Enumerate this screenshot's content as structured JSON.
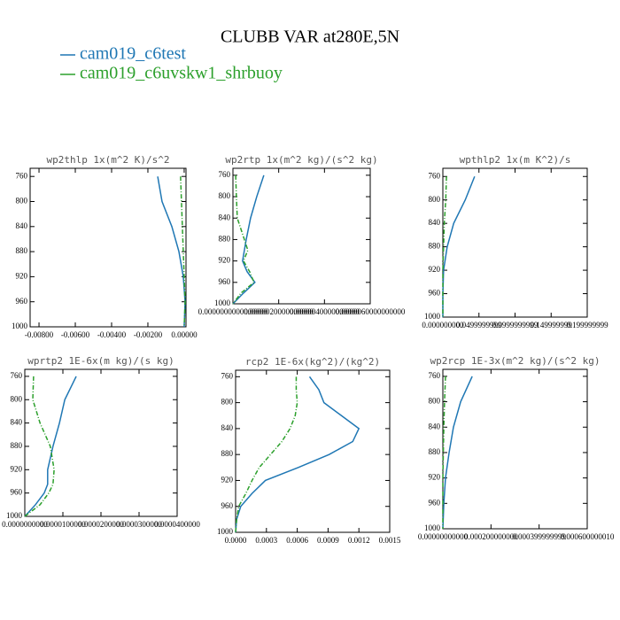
{
  "title": "CLUBB VAR at280E,5N",
  "legend": [
    {
      "name": "cam019_c6test",
      "color": "#1f77b4"
    },
    {
      "name": "cam019_c6uvskw1_shrbuoy",
      "color": "#2ca02c"
    }
  ],
  "chart_data": [
    {
      "type": "line",
      "title": "wp2thlp  1x(m^2 K)/s^2",
      "y": [
        760,
        800,
        840,
        880,
        920,
        960,
        1000
      ],
      "ylim": [
        1000,
        747
      ],
      "yticks": [
        760,
        800,
        840,
        880,
        920,
        960,
        1000
      ],
      "xlim": [
        -0.00849,
        0.0001
      ],
      "xticks": [
        {
          "value": -0.008,
          "label": "-0.00800"
        },
        {
          "value": -0.006,
          "label": "-0.00600"
        },
        {
          "value": -0.004,
          "label": "-0.00400"
        },
        {
          "value": -0.002,
          "label": "-0.00200"
        },
        {
          "value": 0,
          "label": "0.00000"
        }
      ],
      "series": [
        {
          "color": "#1f77b4",
          "linestyle": "solid",
          "values": [
            -0.00146,
            -0.00122,
            -0.00068,
            -0.00029,
            -5e-05,
            5e-05,
            0
          ]
        },
        {
          "color": "#2ca02c",
          "linestyle": "dashdot",
          "values": [
            -0.0002,
            -0.00015,
            -0.0001,
            -5e-05,
            0,
            5e-05,
            0
          ]
        }
      ]
    },
    {
      "type": "line",
      "title": "wp2rtp  1x(m^2 kg)/(s^2 kg)",
      "y": [
        760,
        800,
        840,
        880,
        900,
        920,
        940,
        960,
        980,
        1000
      ],
      "ylim": [
        1000,
        747
      ],
      "yticks": [
        760,
        800,
        840,
        880,
        920,
        960,
        1000
      ],
      "xlim": [
        0,
        6e-06
      ],
      "xticks": [
        {
          "value": 0,
          "label": "0.0000000000000000"
        },
        {
          "value": 2e-06,
          "label": "0.0000020000000000"
        },
        {
          "value": 4e-06,
          "label": "0.0000040000000000"
        },
        {
          "value": 6e-06,
          "label": "0.0000060000000000"
        }
      ],
      "series": [
        {
          "color": "#1f77b4",
          "linestyle": "solid",
          "values": [
            1.35e-06,
            1.04e-06,
            7.7e-07,
            5.8e-07,
            5e-07,
            4.2e-07,
            6.2e-07,
            9.6e-07,
            4.6e-07,
            0
          ]
        },
        {
          "color": "#2ca02c",
          "linestyle": "dashdot",
          "values": [
            1.2e-07,
            1.5e-07,
            1.9e-07,
            5e-07,
            6.5e-07,
            4.6e-07,
            7.3e-07,
            9.2e-07,
            3.5e-07,
            0
          ]
        }
      ]
    },
    {
      "type": "line",
      "title": "wpthlp2  1x(m K^2)/s",
      "y": [
        760,
        800,
        840,
        880,
        920,
        960,
        1000
      ],
      "ylim": [
        1000,
        746
      ],
      "yticks": [
        760,
        800,
        840,
        880,
        920,
        960,
        1000
      ],
      "xlim": [
        0,
        0.2
      ],
      "xticks": [
        {
          "value": 0,
          "label": "0.000000000"
        },
        {
          "value": 0.05,
          "label": "0.0499999999"
        },
        {
          "value": 0.1,
          "label": "0.0999999999"
        },
        {
          "value": 0.15,
          "label": "0.149999999"
        },
        {
          "value": 0.2,
          "label": "0.199999999"
        }
      ],
      "series": [
        {
          "color": "#1f77b4",
          "linestyle": "solid",
          "values": [
            0.044,
            0.031,
            0.015,
            0.006,
            0.001,
            0,
            0
          ]
        },
        {
          "color": "#2ca02c",
          "linestyle": "dashdot",
          "values": [
            0.005,
            0.004,
            0.002,
            0.001,
            0,
            0,
            0
          ]
        }
      ]
    },
    {
      "type": "line",
      "title": "wprtp2  1E-6x(m kg)/(s kg)",
      "y": [
        760,
        800,
        840,
        880,
        920,
        945,
        960,
        980,
        1000
      ],
      "ylim": [
        1000,
        748
      ],
      "yticks": [
        760,
        800,
        840,
        880,
        920,
        960,
        1000
      ],
      "xlim": [
        0,
        4e-05
      ],
      "xticks": [
        {
          "value": 0,
          "label": "0.0000000000"
        },
        {
          "value": 1e-05,
          "label": "0.0000100000"
        },
        {
          "value": 2e-05,
          "label": "0.0000200000"
        },
        {
          "value": 3e-05,
          "label": "0.0000300000"
        },
        {
          "value": 4e-05,
          "label": "0.0000400000"
        }
      ],
      "series": [
        {
          "color": "#1f77b4",
          "linestyle": "solid",
          "values": [
            1.35e-05,
            1.05e-05,
            9.1e-06,
            7.4e-06,
            6e-06,
            6e-06,
            5.1e-06,
            2.8e-06,
            0
          ]
        },
        {
          "color": "#2ca02c",
          "linestyle": "dashdot",
          "values": [
            2.3e-06,
            2.1e-06,
            4e-06,
            6.7e-06,
            7.7e-06,
            7.4e-06,
            6.3e-06,
            4e-06,
            0
          ]
        }
      ]
    },
    {
      "type": "line",
      "title": "rcp2  1E-6x(kg^2)/(kg^2)",
      "y": [
        760,
        780,
        800,
        820,
        840,
        860,
        880,
        900,
        920,
        940,
        960,
        980,
        1000
      ],
      "ylim": [
        1000,
        750
      ],
      "yticks": [
        760,
        800,
        840,
        880,
        920,
        960,
        1000
      ],
      "xlim": [
        0,
        0.0015
      ],
      "xticks": [
        {
          "value": 0,
          "label": "0.0000"
        },
        {
          "value": 0.0003,
          "label": "0.0003"
        },
        {
          "value": 0.0006,
          "label": "0.0006"
        },
        {
          "value": 0.0009,
          "label": "0.0009"
        },
        {
          "value": 0.0012,
          "label": "0.0012"
        },
        {
          "value": 0.0015,
          "label": "0.0015"
        }
      ],
      "series": [
        {
          "color": "#1f77b4",
          "linestyle": "solid",
          "values": [
            0.00072,
            0.00081,
            0.00086,
            0.00103,
            0.0012,
            0.00114,
            0.00091,
            0.00061,
            0.00029,
            0.00016,
            5e-05,
            1e-05,
            0
          ]
        },
        {
          "color": "#2ca02c",
          "linestyle": "dashdot",
          "values": [
            0.00059,
            0.00059,
            0.0006,
            0.00058,
            0.00053,
            0.00045,
            0.00034,
            0.00023,
            0.00016,
            0.0001,
            3e-05,
            1e-05,
            0
          ]
        }
      ]
    },
    {
      "type": "line",
      "title": "wp2rcp  1E-3x(m^2 kg)/(s^2 kg)",
      "y": [
        760,
        800,
        840,
        880,
        920,
        960,
        1000
      ],
      "ylim": [
        1000,
        749
      ],
      "yticks": [
        760,
        800,
        840,
        880,
        920,
        960,
        1000
      ],
      "xlim": [
        0,
        0.0006
      ],
      "xticks": [
        {
          "value": 0,
          "label": "0.00000000000"
        },
        {
          "value": 0.0002,
          "label": "0.000200000000"
        },
        {
          "value": 0.0004,
          "label": "0.000399999999"
        },
        {
          "value": 0.0006,
          "label": "0.000600000010"
        }
      ],
      "series": [
        {
          "color": "#1f77b4",
          "linestyle": "solid",
          "values": [
            0.000122,
            7.4e-05,
            4.4e-05,
            2.6e-05,
            1.1e-05,
            4e-06,
            0
          ]
        },
        {
          "color": "#2ca02c",
          "linestyle": "dashdot",
          "values": [
            1.1e-05,
            7e-06,
            4e-06,
            2e-06,
            0,
            0,
            0
          ]
        }
      ]
    }
  ]
}
